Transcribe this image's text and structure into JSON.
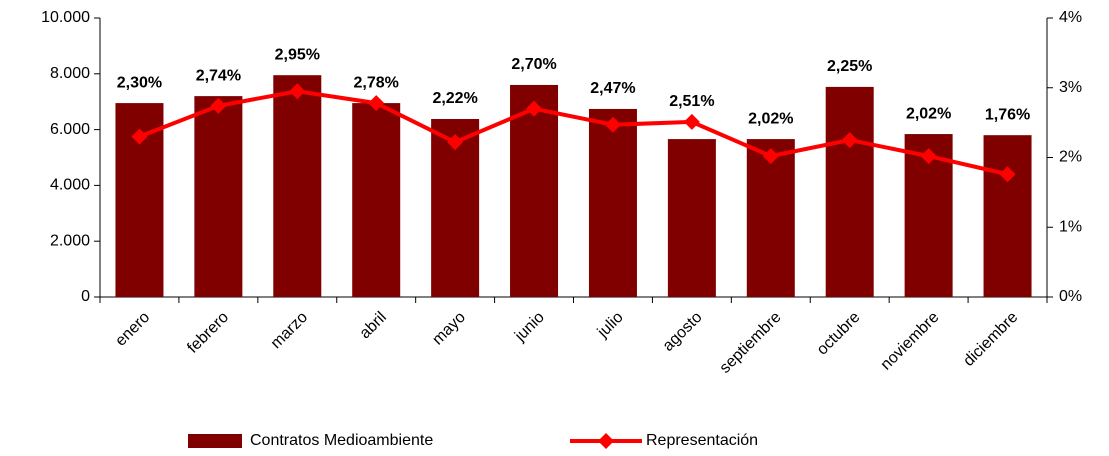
{
  "chart_data": {
    "type": "bar",
    "categories": [
      "enero",
      "febrero",
      "marzo",
      "abril",
      "mayo",
      "junio",
      "julio",
      "agosto",
      "septiembre",
      "octubre",
      "noviembre",
      "diciembre"
    ],
    "series": [
      {
        "name": "Contratos Medioambiente",
        "color": "#800000",
        "values": [
          6950,
          7200,
          7950,
          6950,
          6380,
          7600,
          6740,
          5660,
          5660,
          7530,
          5840,
          5800
        ]
      },
      {
        "name": "Representación",
        "type": "line",
        "axis": "y2",
        "color": "#ff0000",
        "values": [
          2.3,
          2.74,
          2.95,
          2.78,
          2.22,
          2.7,
          2.47,
          2.51,
          2.02,
          2.25,
          2.02,
          1.76
        ],
        "value_labels": [
          "2,30%",
          "2,74%",
          "2,95%",
          "2,78%",
          "2,22%",
          "2,70%",
          "2,47%",
          "2,51%",
          "2,02%",
          "2,25%",
          "2,02%",
          "1,76%"
        ]
      }
    ],
    "ylim": [
      0,
      10000
    ],
    "yticks": [
      0,
      {
        "value": 2000,
        "label": "2.000"
      },
      {
        "value": 4000,
        "label": "4.000"
      },
      {
        "value": 6000,
        "label": "6.000"
      },
      {
        "value": 8000,
        "label": "8.000"
      },
      {
        "value": 10000,
        "label": "10.000"
      }
    ],
    "y2lim": [
      0,
      4
    ],
    "y2ticks": [
      {
        "value": 0,
        "label": "0%"
      },
      {
        "value": 1,
        "label": "1%"
      },
      {
        "value": 2,
        "label": "2%"
      },
      {
        "value": 3,
        "label": "3%"
      },
      {
        "value": 4,
        "label": "4%"
      }
    ],
    "legend": "bottom"
  }
}
